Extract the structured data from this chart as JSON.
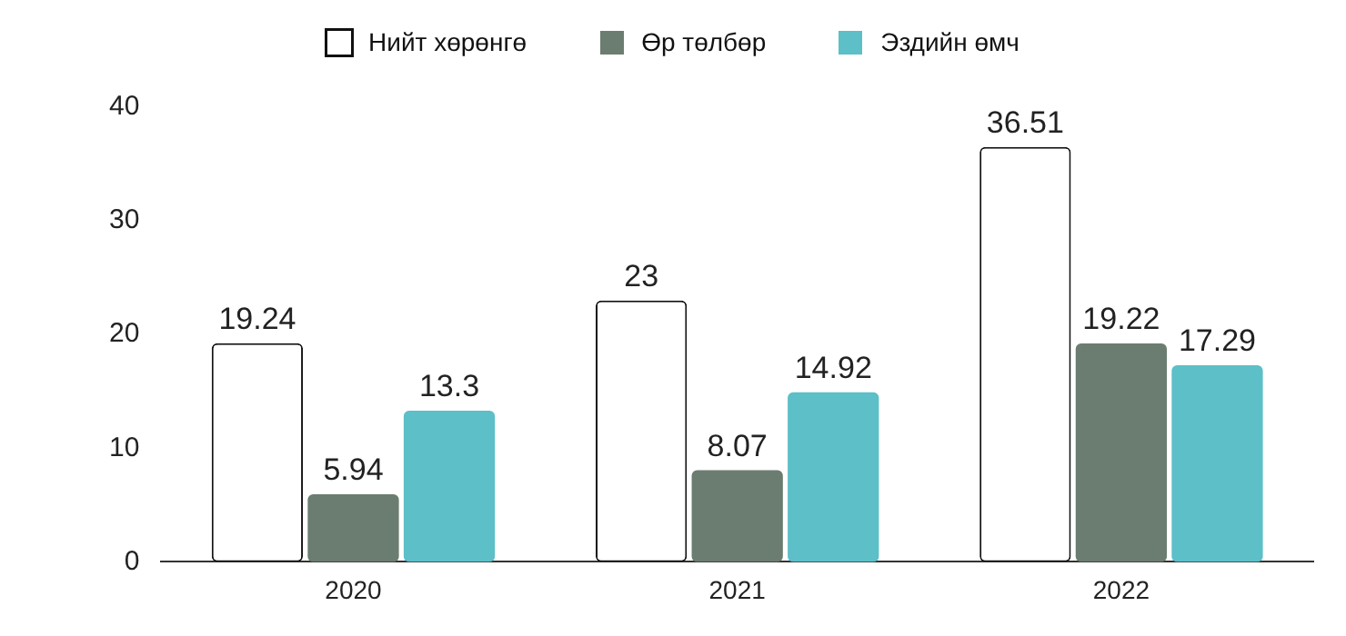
{
  "chart_data": {
    "type": "bar",
    "categories": [
      "2020",
      "2021",
      "2022"
    ],
    "series": [
      {
        "name": "Нийт хөрөнгө",
        "color": "#ffffff",
        "values": [
          19.24,
          23,
          36.51
        ]
      },
      {
        "name": "Өр төлбөр",
        "color": "#6b7d70",
        "values": [
          5.94,
          8.07,
          19.22
        ]
      },
      {
        "name": "Эздийн өмч",
        "color": "#5dbfc7",
        "values": [
          13.3,
          14.92,
          17.29
        ]
      }
    ],
    "ylim": [
      0,
      40
    ],
    "yticks": [
      0,
      10,
      20,
      30,
      40
    ],
    "grid": false,
    "legend": "top",
    "data_labels": true
  }
}
